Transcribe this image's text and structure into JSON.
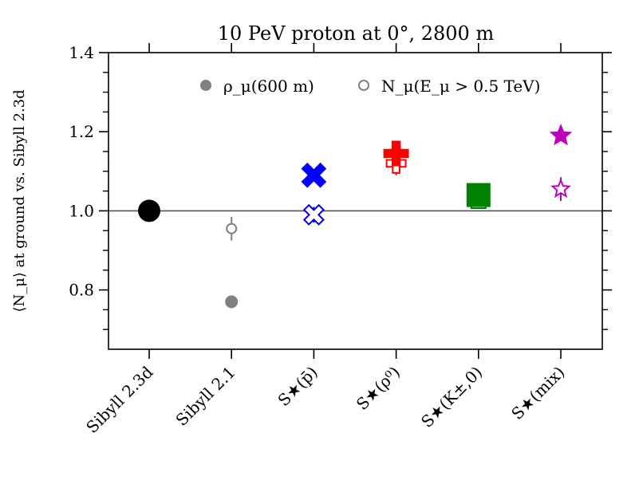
{
  "chart_data": {
    "type": "scatter",
    "title": "10 PeV proton at 0°, 2800 m",
    "ylabel": "⟨N_μ⟩ at ground vs. Sibyll 2.3d",
    "xlabel": "",
    "ylim": [
      0.65,
      1.4
    ],
    "yticks": [
      0.8,
      1.0,
      1.2,
      1.4
    ],
    "ytick_labels": [
      "0.8",
      "1.0",
      "1.2",
      "1.4"
    ],
    "reference_line": 1.0,
    "categories": [
      "Sibyll 2.3d",
      "Sibyll 2.1",
      "S★(p̄)",
      "S★(ρ⁰)",
      "S★(K±,0)",
      "S★(mix)"
    ],
    "legend": [
      {
        "label": "ρ_μ(600 m)",
        "marker": "filled"
      },
      {
        "label": "N_μ(E_μ > 0.5 TeV)",
        "marker": "open"
      }
    ],
    "series": [
      {
        "name": "ρ_μ(600 m)",
        "fill": "filled",
        "points": [
          {
            "category": "Sibyll 2.3d",
            "value": 1.0,
            "marker": "circle",
            "color": "#000000"
          },
          {
            "category": "Sibyll 2.1",
            "value": 0.77,
            "marker": "circle",
            "color": "#808080"
          },
          {
            "category": "S★(p̄)",
            "value": 1.09,
            "marker": "x",
            "color": "#0000ff"
          },
          {
            "category": "S★(ρ⁰)",
            "value": 1.145,
            "marker": "plus",
            "color": "#ff0000"
          },
          {
            "category": "S★(K±,0)",
            "value": 1.04,
            "marker": "square",
            "color": "#008000"
          },
          {
            "category": "S★(mix)",
            "value": 1.19,
            "marker": "star",
            "color": "#bf00bf"
          }
        ]
      },
      {
        "name": "N_μ(E_μ > 0.5 TeV)",
        "fill": "open",
        "points": [
          {
            "category": "Sibyll 2.3d",
            "value": 1.0,
            "error": 0.005,
            "marker": "circle",
            "color": "#000000"
          },
          {
            "category": "Sibyll 2.1",
            "value": 0.955,
            "error": 0.03,
            "marker": "circle",
            "color": "#808080"
          },
          {
            "category": "S★(p̄)",
            "value": 0.99,
            "error": 0.02,
            "marker": "x",
            "color": "#0000ff"
          },
          {
            "category": "S★(ρ⁰)",
            "value": 1.12,
            "error": 0.03,
            "marker": "plus",
            "color": "#ff0000"
          },
          {
            "category": "S★(K±,0)",
            "value": 1.025,
            "error": 0.02,
            "marker": "square",
            "color": "#008000"
          },
          {
            "category": "S★(mix)",
            "value": 1.055,
            "error": 0.03,
            "marker": "star",
            "color": "#bf00bf"
          }
        ]
      }
    ]
  }
}
